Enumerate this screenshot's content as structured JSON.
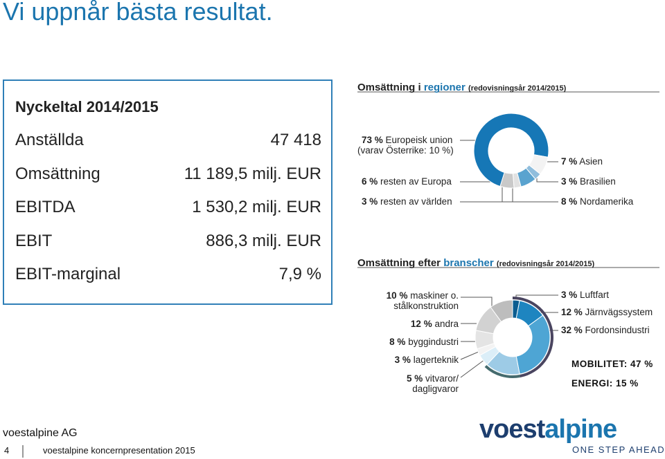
{
  "header": {
    "title": "Vi uppnår bästa resultat."
  },
  "table": {
    "title": "Nyckeltal 2014/2015",
    "rows": [
      [
        "Anställda",
        "47 418"
      ],
      [
        "Omsättning",
        "11 189,5 milj. EUR"
      ],
      [
        "EBITDA",
        "1 530,2 milj. EUR"
      ],
      [
        "EBIT",
        "886,3 milj. EUR"
      ],
      [
        "EBIT-marginal",
        "7,9 %"
      ]
    ]
  },
  "chart_data": [
    {
      "type": "pie",
      "title": "Omsättning i",
      "title_highlight": "regioner",
      "subtitle": "(redovisningsår 2014/2015)",
      "categories": [
        "Europeisk union",
        "resten av Europa",
        "resten av världen",
        "Asien",
        "Brasilien",
        "Nordamerika"
      ],
      "values": [
        73,
        6,
        3,
        7,
        3,
        8
      ],
      "value_labels": [
        "73 %",
        "6 %",
        "3 %",
        "7 %",
        "3 %",
        "8 %"
      ],
      "colors": [
        "#1677b6",
        "#c9c9c9",
        "#e1e1e1",
        "#5aa3cf",
        "#8fbddc",
        "#f3f3f3"
      ],
      "annotation": "(varav Österrike: 10 %)"
    },
    {
      "type": "pie",
      "title": "Omsättning efter",
      "title_highlight": "branscher",
      "subtitle": "(redovisningsår 2014/2015)",
      "categories": [
        "Luftfart",
        "Järnvägssystem",
        "Fordonsindustri",
        "vitvaror/\ndagligvaror",
        "lagerteknik",
        "byggindustri",
        "andra",
        "maskiner o.\nstålkonstruktion"
      ],
      "values": [
        3,
        12,
        32,
        5,
        3,
        8,
        12,
        10
      ],
      "value_labels": [
        "3 %",
        "12 %",
        "32 %",
        "5 %",
        "3 %",
        "8 %",
        "12 %",
        "10 %"
      ],
      "colors": [
        "#0b5d90",
        "#1e85c0",
        "#4ea5d4",
        "#dbeef8",
        "#f3f3f3",
        "#e4e4e4",
        "#d2d2d2",
        "#bdbdbd"
      ],
      "group_values": [
        47,
        15
      ],
      "group_labels": [
        "MOBILITET: 47 %",
        "ENERGI: 15 %"
      ],
      "group_colors": [
        "#4a4560",
        "#456b6e"
      ],
      "group_fill": "#9dcbe6"
    }
  ],
  "footer": {
    "company": "voestalpine AG",
    "page": "4",
    "presentation": "voestalpine koncernpresentation 2015",
    "logo_a": "voest",
    "logo_b": "alpine",
    "slogan": "ONE STEP AHEAD."
  }
}
